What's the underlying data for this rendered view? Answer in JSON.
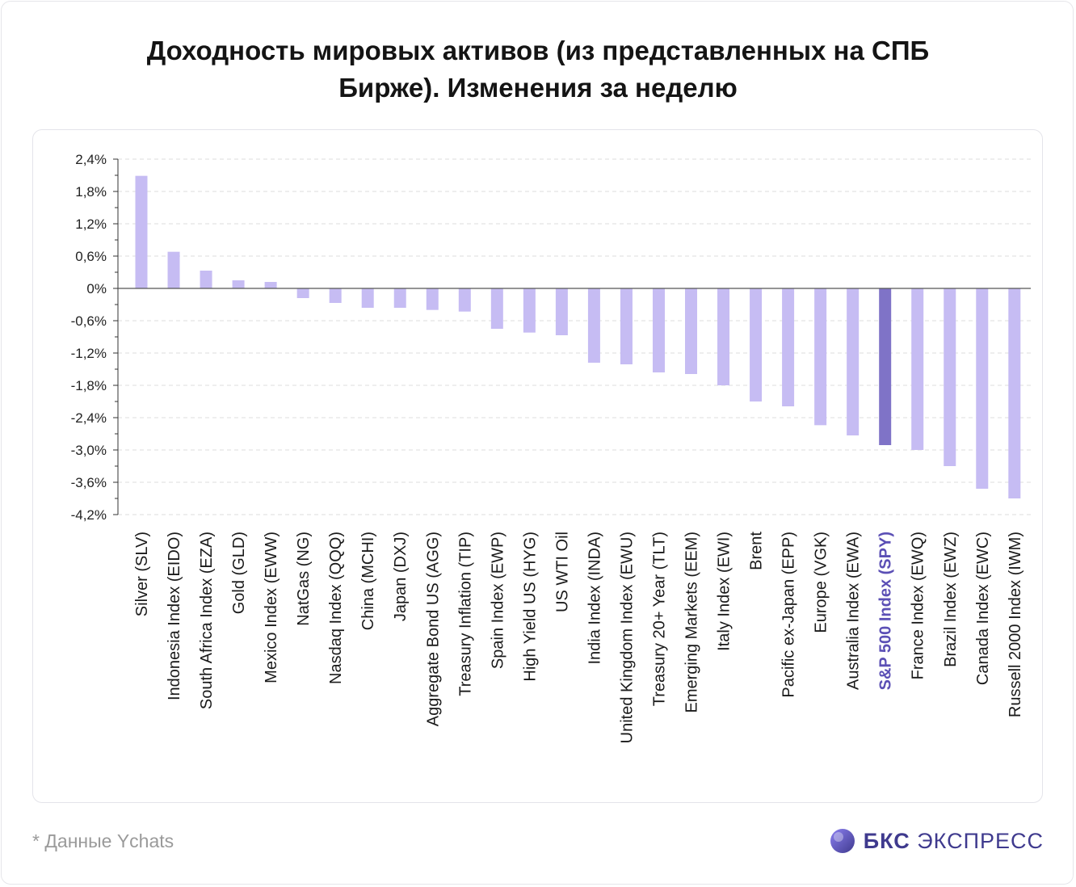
{
  "title_line1": "Доходность мировых активов (из представленных на СПБ",
  "title_line2": "Бирже). Изменения за неделю",
  "footnote": "* Данные Ychats",
  "brand": {
    "name_bold": "БКС",
    "name_rest": "ЭКСПРЕСС",
    "icon": "bks-logo-icon"
  },
  "colors": {
    "bar": "#c6bcf3",
    "highlight_bar": "#7f73c7",
    "highlight_label": "#5b4fb5",
    "axis": "#333333",
    "grid": "#dedede"
  },
  "chart_data": {
    "type": "bar",
    "title": "Доходность мировых активов (из представленных на СПБ Бирже). Изменения за неделю",
    "xlabel": "",
    "ylabel": "",
    "ylim": [
      -4.2,
      2.4
    ],
    "yticks": [
      "2,4%",
      "1,8%",
      "1,2%",
      "0,6%",
      "0%",
      "-0,6%",
      "-1,2%",
      "-1,8%",
      "-2,4%",
      "-3,0%",
      "-3,6%",
      "-4,2%"
    ],
    "ytick_values": [
      2.4,
      1.8,
      1.2,
      0.6,
      0,
      -0.6,
      -1.2,
      -1.8,
      -2.4,
      -3.0,
      -3.6,
      -4.2
    ],
    "grid": true,
    "highlight": "S&P 500 Index (SPY)",
    "categories": [
      "Silver (SLV)",
      "Indonesia Index (EIDO)",
      "South Africa Index (EZA)",
      "Gold (GLD)",
      "Mexico Index (EWW)",
      "NatGas (NG)",
      "Nasdaq Index (QQQ)",
      "China (MCHI)",
      "Japan (DXJ)",
      "Aggregate Bond US (AGG)",
      "Treasury Inflation (TIP)",
      "Spain Index (EWP)",
      "High Yield US (HYG)",
      "US WTI Oil",
      "India Index (INDA)",
      "United Kingdom Index (EWU)",
      "Treasury 20+ Year (TLT)",
      "Emerging Markets (EEM)",
      "Italy Index (EWI)",
      "Brent",
      "Pacific ex-Japan (EPP)",
      "Europe (VGK)",
      "Australia Index (EWA)",
      "S&P 500 Index (SPY)",
      "France Index (EWQ)",
      "Brazil Index (EWZ)",
      "Canada Index (EWC)",
      "Russell 2000 Index (IWM)"
    ],
    "values": [
      2.09,
      0.68,
      0.33,
      0.15,
      0.12,
      -0.18,
      -0.27,
      -0.36,
      -0.36,
      -0.4,
      -0.43,
      -0.75,
      -0.82,
      -0.87,
      -1.38,
      -1.41,
      -1.56,
      -1.59,
      -1.8,
      -2.1,
      -2.19,
      -2.54,
      -2.73,
      -2.91,
      -3.0,
      -3.3,
      -3.72,
      -3.9
    ]
  }
}
